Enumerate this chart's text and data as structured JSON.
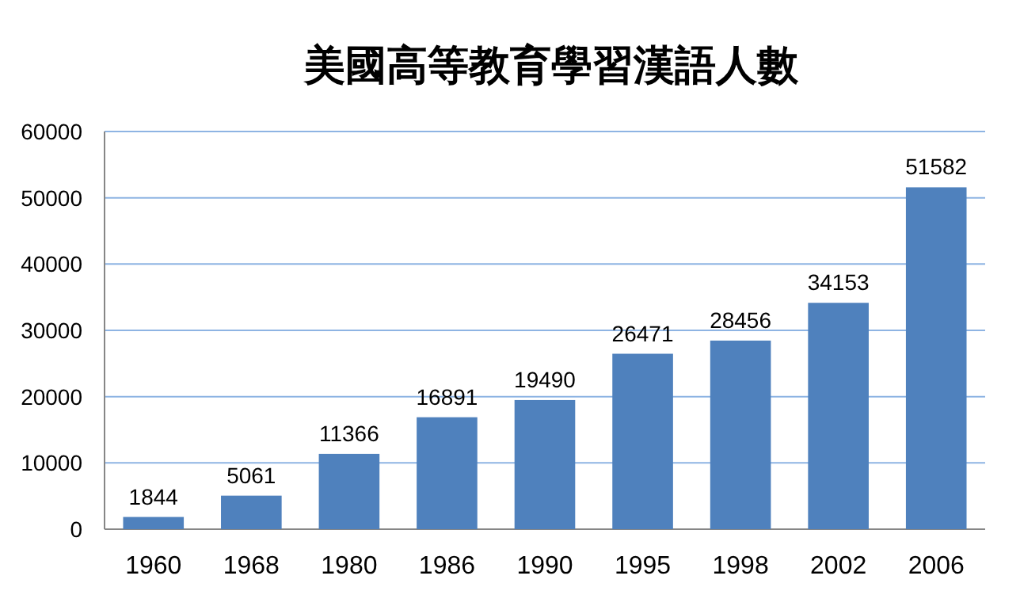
{
  "chart_data": {
    "type": "bar",
    "title": "美國高等教育學習漢語人數",
    "categories": [
      "1960",
      "1968",
      "1980",
      "1986",
      "1990",
      "1995",
      "1998",
      "2002",
      "2006"
    ],
    "values": [
      1844,
      5061,
      11366,
      16891,
      19490,
      26471,
      28456,
      34153,
      51582
    ],
    "color": "#4f81bd",
    "ylim": [
      0,
      60000
    ],
    "yticks": [
      0,
      10000,
      20000,
      30000,
      40000,
      50000,
      60000
    ],
    "grid": "y",
    "data_labels": true
  }
}
